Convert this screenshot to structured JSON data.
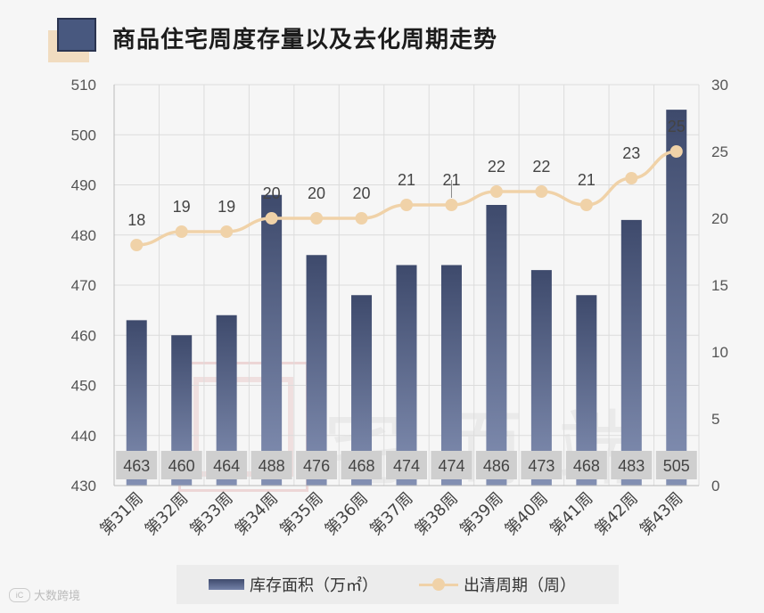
{
  "header": {
    "title": "商品住宅周度存量以及去化周期走势"
  },
  "chart_data": {
    "type": "bar+line",
    "categories": [
      "第31周",
      "第32周",
      "第33周",
      "第34周",
      "第35周",
      "第36周",
      "第37周",
      "第38周",
      "第39周",
      "第40周",
      "第41周",
      "第42周",
      "第43周"
    ],
    "series": [
      {
        "name": "库存面积（万㎡）",
        "type": "bar",
        "axis": "left",
        "values": [
          463,
          460,
          464,
          488,
          476,
          468,
          474,
          474,
          486,
          473,
          468,
          483,
          505
        ]
      },
      {
        "name": "出清周期（周）",
        "type": "line",
        "axis": "right",
        "values": [
          18,
          19,
          19,
          20,
          20,
          20,
          21,
          21,
          22,
          22,
          21,
          23,
          25
        ]
      }
    ],
    "y_left": {
      "min": 430,
      "max": 510,
      "ticks": [
        430,
        440,
        450,
        460,
        470,
        480,
        490,
        500,
        510
      ]
    },
    "y_right": {
      "min": 0,
      "max": 30,
      "ticks": [
        0,
        5,
        10,
        15,
        20,
        25,
        30
      ]
    },
    "grid": true,
    "legend": "bottom",
    "colors": {
      "bar_top": "#3e4a6c",
      "bar_bottom": "#8390b3",
      "line": "#f0d2a8",
      "label_box": "#cfcfcf",
      "grid": "#dcdcdc"
    }
  },
  "legend": {
    "bar_label": "库存面积（万㎡）",
    "line_label": "出清周期（周）"
  },
  "source": {
    "text": "大数跨境",
    "logo": "iC"
  }
}
